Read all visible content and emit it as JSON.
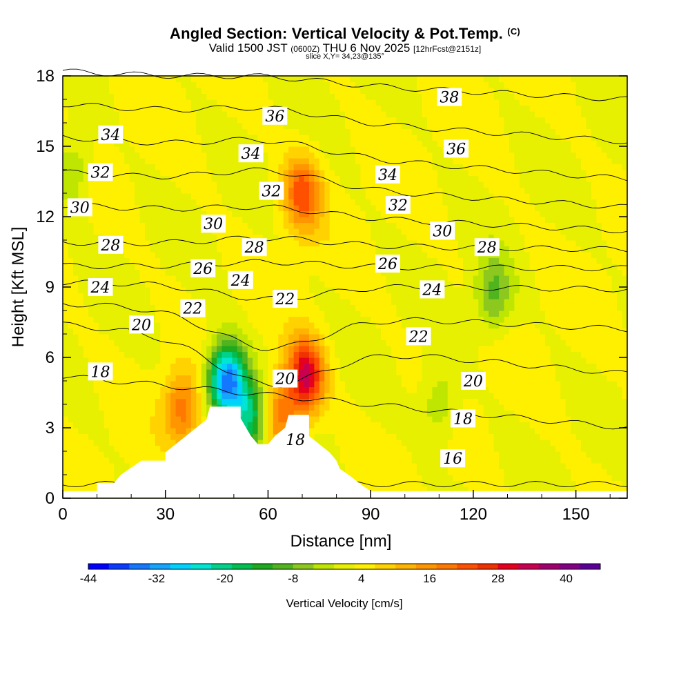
{
  "header": {
    "title": "Angled Section: Vertical Velocity & Pot.Temp.",
    "title_mark": "(C)",
    "valid_prefix": "Valid 1500 JST",
    "valid_utc": "(0600Z)",
    "valid_date": "THU 6 Nov 2025",
    "forecast": "[12hrFcst@2151z]",
    "slice": "slice X,Y= 34,23@135°"
  },
  "chart_data": {
    "type": "heatmap",
    "xlabel": "Distance [nm]",
    "ylabel": "Height [Kft MSL]",
    "xlim": [
      0,
      165
    ],
    "ylim": [
      0,
      18
    ],
    "x_ticks": [
      "0",
      "30",
      "60",
      "90",
      "120",
      "150"
    ],
    "x_tick_values": [
      0,
      30,
      60,
      90,
      120,
      150
    ],
    "y_ticks": [
      "0",
      "3",
      "6",
      "9",
      "12",
      "15",
      "18"
    ],
    "y_tick_values": [
      0,
      3,
      6,
      9,
      12,
      15,
      18
    ],
    "terrain_profile": [
      [
        0,
        0.3
      ],
      [
        10,
        0.3
      ],
      [
        10,
        0.65
      ],
      [
        15,
        0.65
      ],
      [
        17,
        1.0
      ],
      [
        20,
        1.3
      ],
      [
        23,
        1.6
      ],
      [
        30,
        1.6
      ],
      [
        30,
        1.95
      ],
      [
        33,
        2.3
      ],
      [
        36,
        2.65
      ],
      [
        39,
        3.0
      ],
      [
        42,
        3.35
      ],
      [
        43,
        3.9
      ],
      [
        52,
        3.9
      ],
      [
        52,
        3.4
      ],
      [
        55,
        2.65
      ],
      [
        57,
        2.3
      ],
      [
        60,
        2.3
      ],
      [
        62,
        2.65
      ],
      [
        65,
        3.0
      ],
      [
        66,
        3.55
      ],
      [
        72,
        3.55
      ],
      [
        72,
        2.65
      ],
      [
        75,
        2.3
      ],
      [
        78,
        1.95
      ],
      [
        80,
        1.6
      ],
      [
        81,
        1.25
      ],
      [
        84,
        0.95
      ],
      [
        87,
        0.6
      ],
      [
        90,
        0.3
      ],
      [
        165,
        0.3
      ]
    ],
    "isentropes": {
      "label": "Potential temperature (C)",
      "lines": [
        {
          "theta": 16,
          "left": 0.6,
          "right": 0.6,
          "bump": 0.0
        },
        {
          "theta": 18,
          "left": 5.2,
          "right": 3.0,
          "bump": 0.0
        },
        {
          "theta": 20,
          "left": 7.4,
          "right": 5.3,
          "bump": -1.8
        },
        {
          "theta": 22,
          "left": 8.3,
          "right": 7.2,
          "bump": -1.5
        },
        {
          "theta": 24,
          "left": 9.2,
          "right": 8.9,
          "bump": -0.6
        },
        {
          "theta": 26,
          "left": 9.9,
          "right": 9.8,
          "bump": 0.2
        },
        {
          "theta": 28,
          "left": 10.9,
          "right": 10.6,
          "bump": 0.3
        },
        {
          "theta": 30,
          "left": 12.5,
          "right": 11.4,
          "bump": 0.3
        },
        {
          "theta": 32,
          "left": 13.9,
          "right": 12.4,
          "bump": 0.6
        },
        {
          "theta": 34,
          "left": 15.4,
          "right": 13.6,
          "bump": 0.5
        },
        {
          "theta": 36,
          "left": 16.8,
          "right": 15.2,
          "bump": 0.4
        },
        {
          "theta": 38,
          "left": 18.2,
          "right": 17.0,
          "bump": 0.2
        }
      ],
      "labels": [
        {
          "text": "34",
          "x": 14,
          "y": 15.5
        },
        {
          "text": "32",
          "x": 11,
          "y": 13.9
        },
        {
          "text": "30",
          "x": 5,
          "y": 12.4
        },
        {
          "text": "28",
          "x": 14,
          "y": 10.8
        },
        {
          "text": "24",
          "x": 11,
          "y": 9.0
        },
        {
          "text": "20",
          "x": 23,
          "y": 7.4
        },
        {
          "text": "18",
          "x": 11,
          "y": 5.4
        },
        {
          "text": "36",
          "x": 62,
          "y": 16.3
        },
        {
          "text": "34",
          "x": 55,
          "y": 14.7
        },
        {
          "text": "32",
          "x": 61,
          "y": 13.1
        },
        {
          "text": "30",
          "x": 44,
          "y": 11.7
        },
        {
          "text": "28",
          "x": 56,
          "y": 10.7
        },
        {
          "text": "26",
          "x": 41,
          "y": 9.8
        },
        {
          "text": "24",
          "x": 52,
          "y": 9.3
        },
        {
          "text": "22",
          "x": 38,
          "y": 8.1
        },
        {
          "text": "22",
          "x": 65,
          "y": 8.5
        },
        {
          "text": "20",
          "x": 65,
          "y": 5.1
        },
        {
          "text": "18",
          "x": 68,
          "y": 2.5
        },
        {
          "text": "38",
          "x": 113,
          "y": 17.1
        },
        {
          "text": "36",
          "x": 115,
          "y": 14.9
        },
        {
          "text": "34",
          "x": 95,
          "y": 13.8
        },
        {
          "text": "32",
          "x": 98,
          "y": 12.5
        },
        {
          "text": "30",
          "x": 111,
          "y": 11.4
        },
        {
          "text": "28",
          "x": 124,
          "y": 10.7
        },
        {
          "text": "26",
          "x": 95,
          "y": 10.0
        },
        {
          "text": "24",
          "x": 108,
          "y": 8.9
        },
        {
          "text": "22",
          "x": 104,
          "y": 6.9
        },
        {
          "text": "20",
          "x": 120,
          "y": 5.0
        },
        {
          "text": "18",
          "x": 117,
          "y": 3.4
        },
        {
          "text": "16",
          "x": 114,
          "y": 1.7
        }
      ]
    },
    "vertical_velocity": {
      "units": "cm/s",
      "features": [
        {
          "kind": "updraft",
          "x": 71,
          "y": 5.2,
          "value": 30
        },
        {
          "kind": "updraft",
          "x": 70,
          "y": 13.0,
          "value": 20
        },
        {
          "kind": "downdraft",
          "x": 48,
          "y": 5.0,
          "value": -40
        },
        {
          "kind": "downdraft",
          "x": 55,
          "y": 3.4,
          "value": -22
        },
        {
          "kind": "updraft",
          "x": 35,
          "y": 3.8,
          "value": 16
        },
        {
          "kind": "updraft",
          "x": 63,
          "y": 3.5,
          "value": 18
        },
        {
          "kind": "downdraft",
          "x": 126,
          "y": 8.7,
          "value": -12
        },
        {
          "kind": "downdraft",
          "x": 110,
          "y": 4.0,
          "value": -8
        },
        {
          "kind": "downdraft",
          "x": 3,
          "y": 14.0,
          "value": -8
        }
      ]
    }
  },
  "colorbar": {
    "title": "Vertical Velocity [cm/s]",
    "labels": [
      "-44",
      "-32",
      "-20",
      "-8",
      "4",
      "16",
      "28",
      "40"
    ],
    "label_values": [
      -44,
      -32,
      -20,
      -8,
      4,
      16,
      28,
      40
    ],
    "range": [
      -44,
      46
    ],
    "colors": [
      "#0000ff",
      "#0a3cff",
      "#1478ff",
      "#14a5ff",
      "#00d2ff",
      "#00e6d2",
      "#00d28c",
      "#00be50",
      "#1eaa1e",
      "#50b41e",
      "#8cc81e",
      "#bee600",
      "#e6f000",
      "#fff000",
      "#ffd200",
      "#ffb400",
      "#ff9600",
      "#ff7800",
      "#ff5000",
      "#f03200",
      "#e6001e",
      "#c80050",
      "#a0006e",
      "#820082",
      "#5a0096"
    ]
  }
}
